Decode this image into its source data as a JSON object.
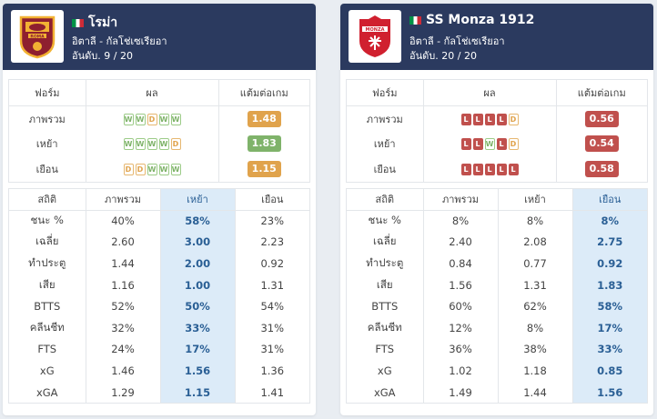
{
  "left": {
    "team_name": "โรม่า",
    "league": "อิตาลี - กัลโช่เซเรียอา",
    "rank": "อันดับ. 9 / 20",
    "logo_text": "ROMA",
    "logo_color": "#8e1f2f",
    "form_headers": [
      "ฟอร์ม",
      "ผล",
      "แต้มต่อเกม"
    ],
    "form_rows": [
      {
        "label": "ภาพรวม",
        "results": [
          "W",
          "W",
          "D",
          "W",
          "W"
        ],
        "ppg": "1.48",
        "ppg_color": "#e0a34c"
      },
      {
        "label": "เหย้า",
        "results": [
          "W",
          "W",
          "W",
          "W",
          "D"
        ],
        "ppg": "1.83",
        "ppg_color": "#7fb36a"
      },
      {
        "label": "เยือน",
        "results": [
          "D",
          "D",
          "W",
          "W",
          "W"
        ],
        "ppg": "1.15",
        "ppg_color": "#e0a34c"
      }
    ],
    "stats_headers": [
      "สถิติ",
      "ภาพรวม",
      "เหย้า",
      "เยือน"
    ],
    "highlight_col": 2,
    "stats_rows": [
      {
        "label": "ชนะ %",
        "values": [
          "40%",
          "58%",
          "23%"
        ]
      },
      {
        "label": "เฉลี่ย",
        "values": [
          "2.60",
          "3.00",
          "2.23"
        ]
      },
      {
        "label": "ทำประตู",
        "values": [
          "1.44",
          "2.00",
          "0.92"
        ]
      },
      {
        "label": "เสีย",
        "values": [
          "1.16",
          "1.00",
          "1.31"
        ]
      },
      {
        "label": "BTTS",
        "values": [
          "52%",
          "50%",
          "54%"
        ]
      },
      {
        "label": "คลีนชีท",
        "values": [
          "32%",
          "33%",
          "31%"
        ]
      },
      {
        "label": "FTS",
        "values": [
          "24%",
          "17%",
          "31%"
        ]
      },
      {
        "label": "xG",
        "values": [
          "1.46",
          "1.56",
          "1.36"
        ]
      },
      {
        "label": "xGA",
        "values": [
          "1.29",
          "1.15",
          "1.41"
        ]
      }
    ]
  },
  "right": {
    "team_name": "SS Monza 1912",
    "league": "อิตาลี - กัลโช่เซเรียอา",
    "rank": "อันดับ. 20 / 20",
    "logo_text": "MONZA",
    "logo_color": "#d0202f",
    "form_headers": [
      "ฟอร์ม",
      "ผล",
      "แต้มต่อเกม"
    ],
    "form_rows": [
      {
        "label": "ภาพรวม",
        "results": [
          "L",
          "L",
          "L",
          "L",
          "D"
        ],
        "ppg": "0.56",
        "ppg_color": "#c0504d"
      },
      {
        "label": "เหย้า",
        "results": [
          "L",
          "L",
          "W",
          "L",
          "D"
        ],
        "ppg": "0.54",
        "ppg_color": "#c0504d"
      },
      {
        "label": "เยือน",
        "results": [
          "L",
          "L",
          "L",
          "L",
          "L"
        ],
        "ppg": "0.58",
        "ppg_color": "#c0504d"
      }
    ],
    "stats_headers": [
      "สถิติ",
      "ภาพรวม",
      "เหย้า",
      "เยือน"
    ],
    "highlight_col": 3,
    "stats_rows": [
      {
        "label": "ชนะ %",
        "values": [
          "8%",
          "8%",
          "8%"
        ]
      },
      {
        "label": "เฉลี่ย",
        "values": [
          "2.40",
          "2.08",
          "2.75"
        ]
      },
      {
        "label": "ทำประตู",
        "values": [
          "0.84",
          "0.77",
          "0.92"
        ]
      },
      {
        "label": "เสีย",
        "values": [
          "1.56",
          "1.31",
          "1.83"
        ]
      },
      {
        "label": "BTTS",
        "values": [
          "60%",
          "62%",
          "58%"
        ]
      },
      {
        "label": "คลีนชีท",
        "values": [
          "12%",
          "8%",
          "17%"
        ]
      },
      {
        "label": "FTS",
        "values": [
          "36%",
          "38%",
          "33%"
        ]
      },
      {
        "label": "xG",
        "values": [
          "1.02",
          "1.18",
          "0.85"
        ]
      },
      {
        "label": "xGA",
        "values": [
          "1.49",
          "1.44",
          "1.56"
        ]
      }
    ]
  }
}
